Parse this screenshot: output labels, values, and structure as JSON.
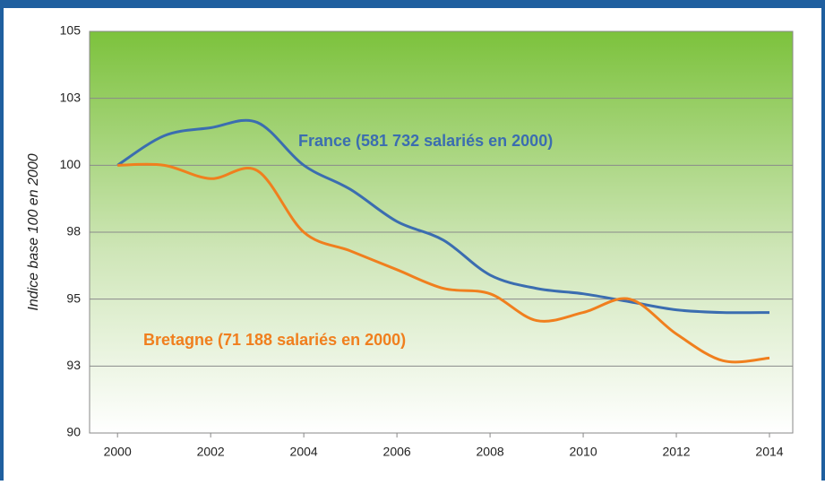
{
  "chart_data": {
    "type": "line",
    "y_label": "Indice base 100 en 2000",
    "x": [
      2000,
      2001,
      2002,
      2003,
      2004,
      2005,
      2006,
      2007,
      2008,
      2009,
      2010,
      2011,
      2012,
      2013,
      2014
    ],
    "series": [
      {
        "name": "France (581 732 salariés en 2000)",
        "color": "#3b6db0",
        "values": [
          100,
          101.1,
          101.4,
          101.6,
          100.0,
          99.1,
          97.9,
          97.2,
          95.9,
          95.4,
          95.2,
          94.9,
          94.6,
          94.5,
          94.5
        ]
      },
      {
        "name": "Bretagne (71 188 salariés en 2000)",
        "color": "#f07f1e",
        "values": [
          100,
          100.0,
          99.5,
          99.8,
          97.5,
          96.8,
          96.1,
          95.4,
          95.2,
          94.2,
          94.5,
          95.0,
          93.7,
          92.7,
          92.8
        ]
      }
    ],
    "xlim": [
      1999.4,
      2014.5
    ],
    "xticks": [
      2000,
      2002,
      2004,
      2006,
      2008,
      2010,
      2012,
      2014
    ],
    "ylim": [
      90,
      105
    ],
    "yticks": [
      90,
      {
        "value": 92.5,
        "label": "93"
      },
      95,
      {
        "value": 97.5,
        "label": "98"
      },
      100,
      {
        "value": 102.5,
        "label": "103"
      },
      105
    ],
    "grid": true
  }
}
